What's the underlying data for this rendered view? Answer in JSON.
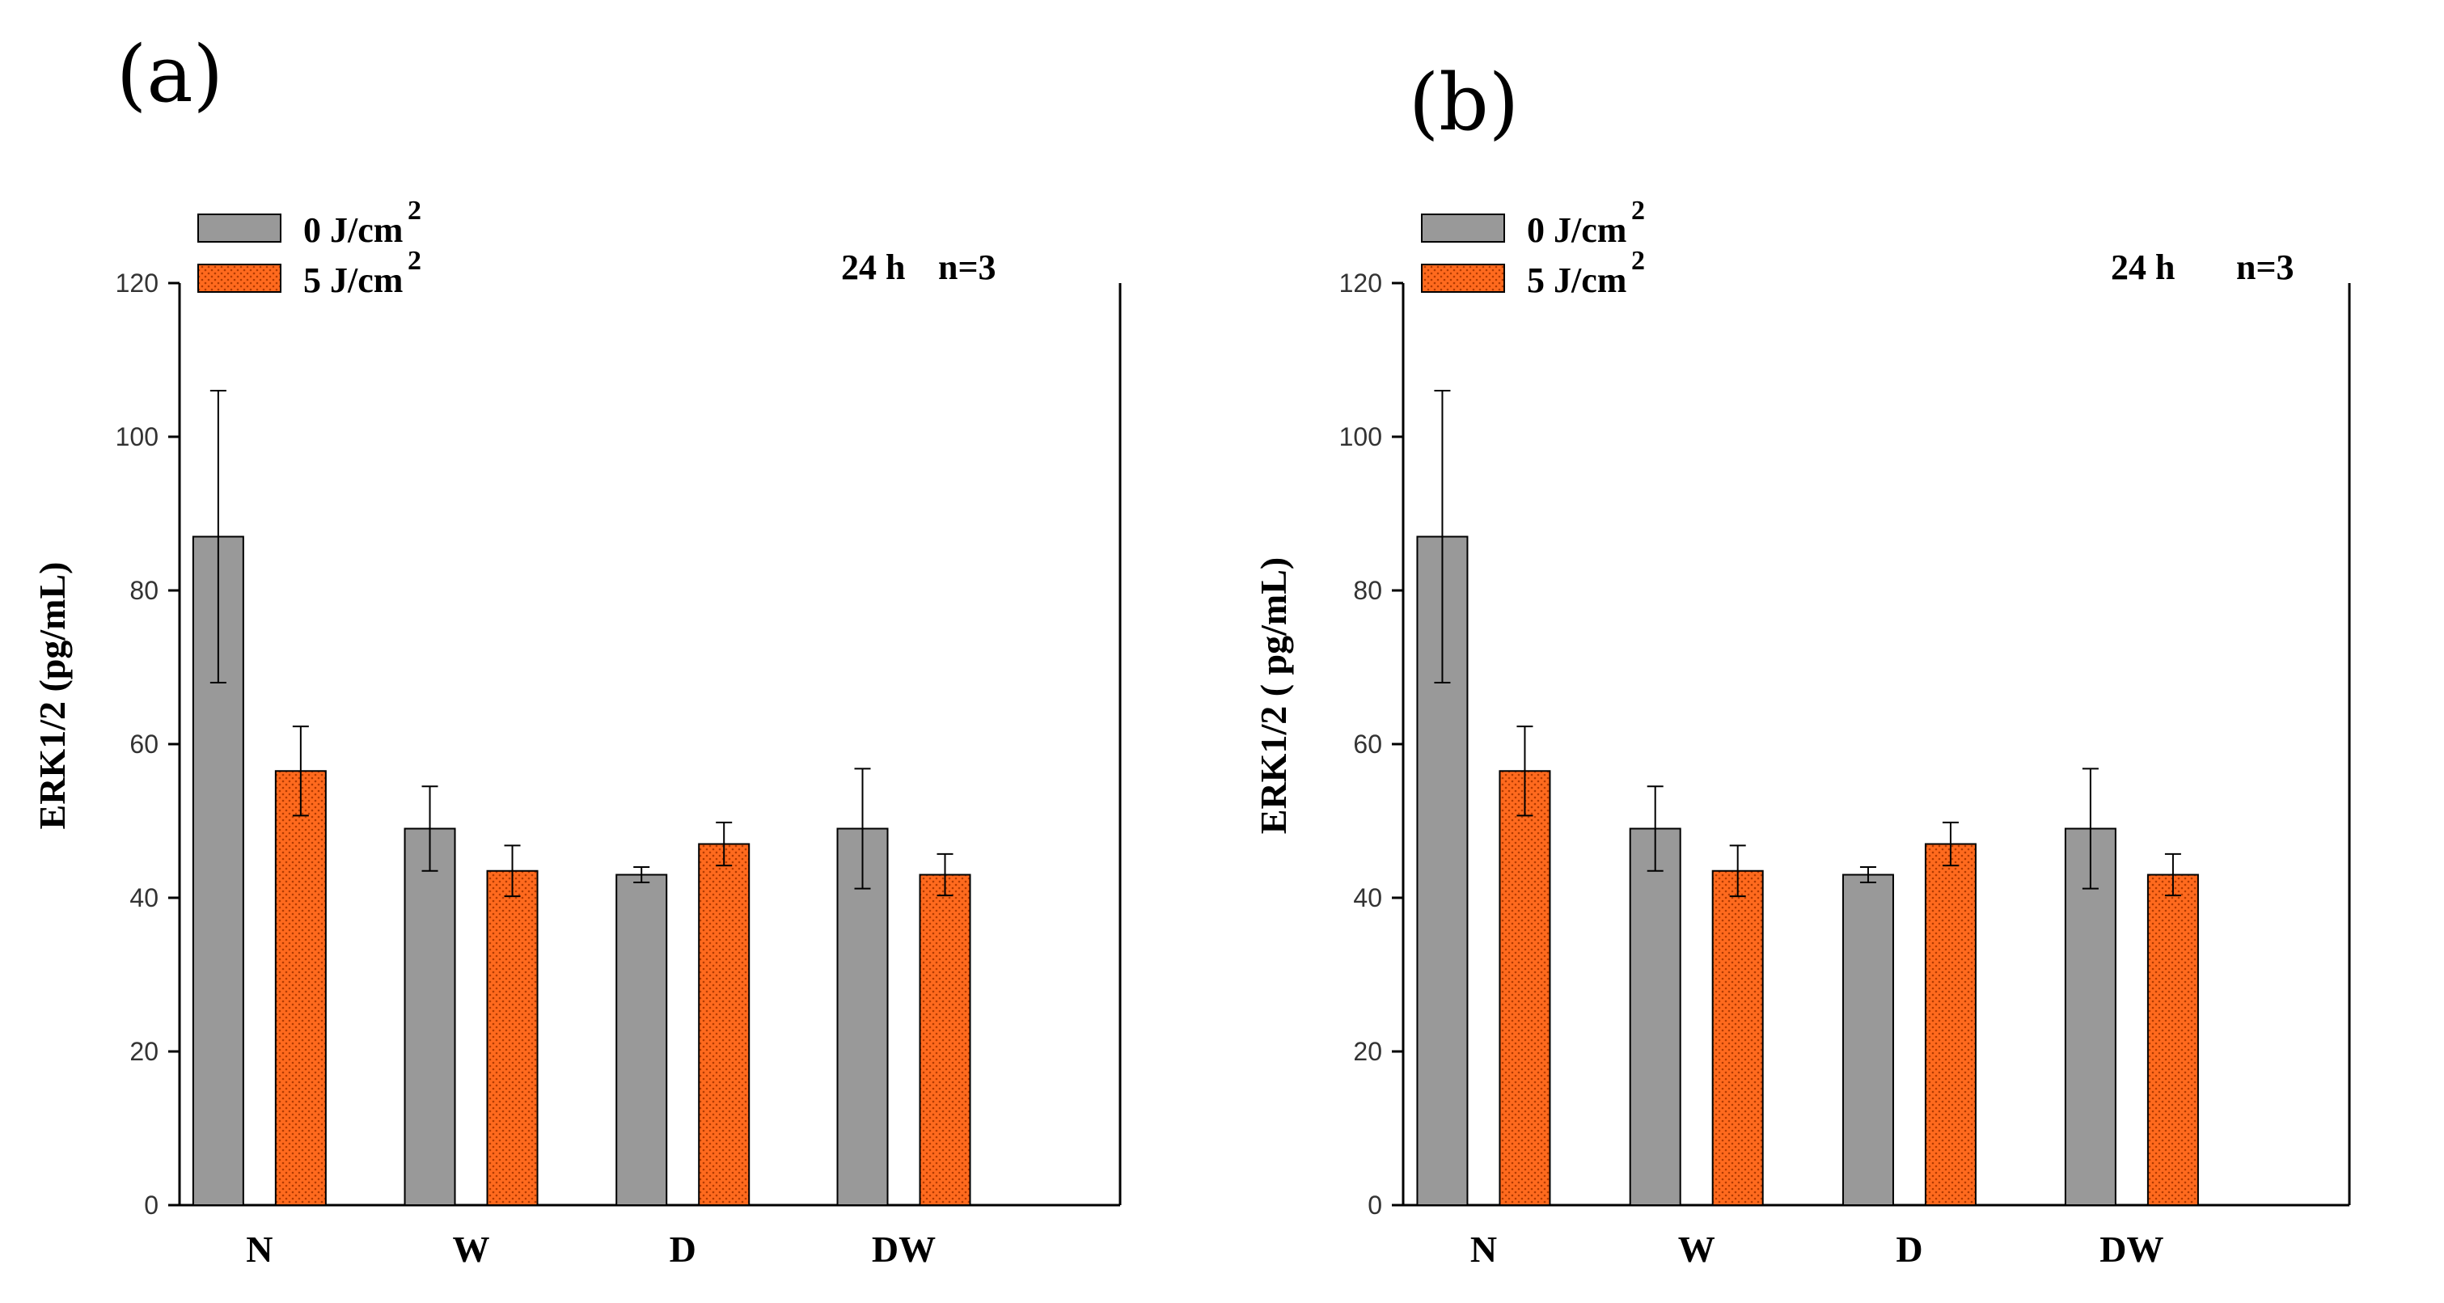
{
  "colors": {
    "control": "#999999",
    "treated": "#ff6a1e",
    "treated_dot": "#b23b00",
    "axis": "#000000"
  },
  "chart_data": [
    {
      "panel_label": "(a)",
      "type": "bar",
      "categories": [
        "N",
        "W",
        "D",
        "DW"
      ],
      "ylabel": "ERK1/2 (pg/mL)",
      "ylim": [
        0,
        120
      ],
      "yticks": [
        "0",
        "20",
        "40",
        "60",
        "80",
        "100",
        "120"
      ],
      "annotation_time": "24 h",
      "annotation_n": "n=3",
      "series": [
        {
          "name": "0 J/cm",
          "sup": "2",
          "values": [
            87,
            49,
            43,
            49
          ],
          "errors": [
            19,
            5.5,
            1,
            7.8
          ]
        },
        {
          "name": "5 J/cm",
          "sup": "2",
          "values": [
            56.5,
            43.5,
            47,
            43
          ],
          "errors": [
            5.8,
            3.3,
            2.8,
            2.7
          ]
        }
      ]
    },
    {
      "panel_label": "(b)",
      "type": "bar",
      "categories": [
        "N",
        "W",
        "D",
        "DW"
      ],
      "ylabel": "ERK1/2 ( pg/mL)",
      "ylim": [
        0,
        120
      ],
      "yticks": [
        "0",
        "20",
        "40",
        "60",
        "80",
        "100",
        "120"
      ],
      "annotation_time": "24 h",
      "annotation_n": "n=3",
      "series": [
        {
          "name": "0 J/cm",
          "sup": "2",
          "values": [
            87,
            49,
            43,
            49
          ],
          "errors": [
            19,
            5.5,
            1,
            7.8
          ]
        },
        {
          "name": "5 J/cm",
          "sup": "2",
          "values": [
            56.5,
            43.5,
            47,
            43
          ],
          "errors": [
            5.8,
            3.3,
            2.8,
            2.7
          ]
        }
      ]
    }
  ]
}
